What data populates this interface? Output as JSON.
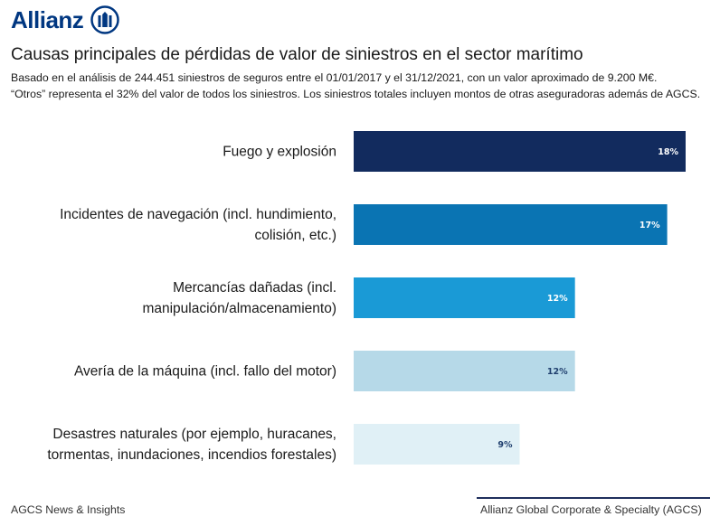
{
  "brand": {
    "name": "Allianz"
  },
  "header": {
    "title": "Causas principales de pérdidas de valor de siniestros en el sector marítimo",
    "subtitle_line1": "Basado en el análisis de 244.451 siniestros de seguros entre el 01/01/2017 y el 31/12/2021, con un valor aproximado de 9.200 M€.",
    "subtitle_line2": "“Otros” representa el 32% del valor de todos los siniestros. Los siniestros totales incluyen montos de otras aseguradoras además de AGCS."
  },
  "chart_data": {
    "type": "bar",
    "orientation": "horizontal",
    "categories": [
      [
        "Fuego y explosión"
      ],
      [
        "Incidentes de navegación (incl. hundimiento,",
        "colisión, etc.)"
      ],
      [
        "Mercancías dañadas (incl.",
        "manipulación/almacenamiento)"
      ],
      [
        "Avería de la máquina (incl. fallo del motor)"
      ],
      [
        "Desastres naturales (por ejemplo, huracanes,",
        "tormentas, inundaciones, incendios forestales)"
      ]
    ],
    "values": [
      18,
      17,
      12,
      12,
      9
    ],
    "value_labels": [
      "18%",
      "17%",
      "12%",
      "12%",
      "9%"
    ],
    "colors": [
      "#122b5e",
      "#0a74b3",
      "#1a9ad6",
      "#b6d9e8",
      "#e0f0f6"
    ],
    "label_colors": [
      "#ffffff",
      "#ffffff",
      "#ffffff",
      "#1f3f6e",
      "#1f3f6e"
    ],
    "xlim": [
      0,
      18
    ],
    "title": "Causas principales de pérdidas de valor de siniestros en el sector marítimo",
    "xlabel": "",
    "ylabel": ""
  },
  "footer": {
    "left": "AGCS News & Insights",
    "right": "Allianz Global Corporate & Specialty (AGCS)"
  }
}
